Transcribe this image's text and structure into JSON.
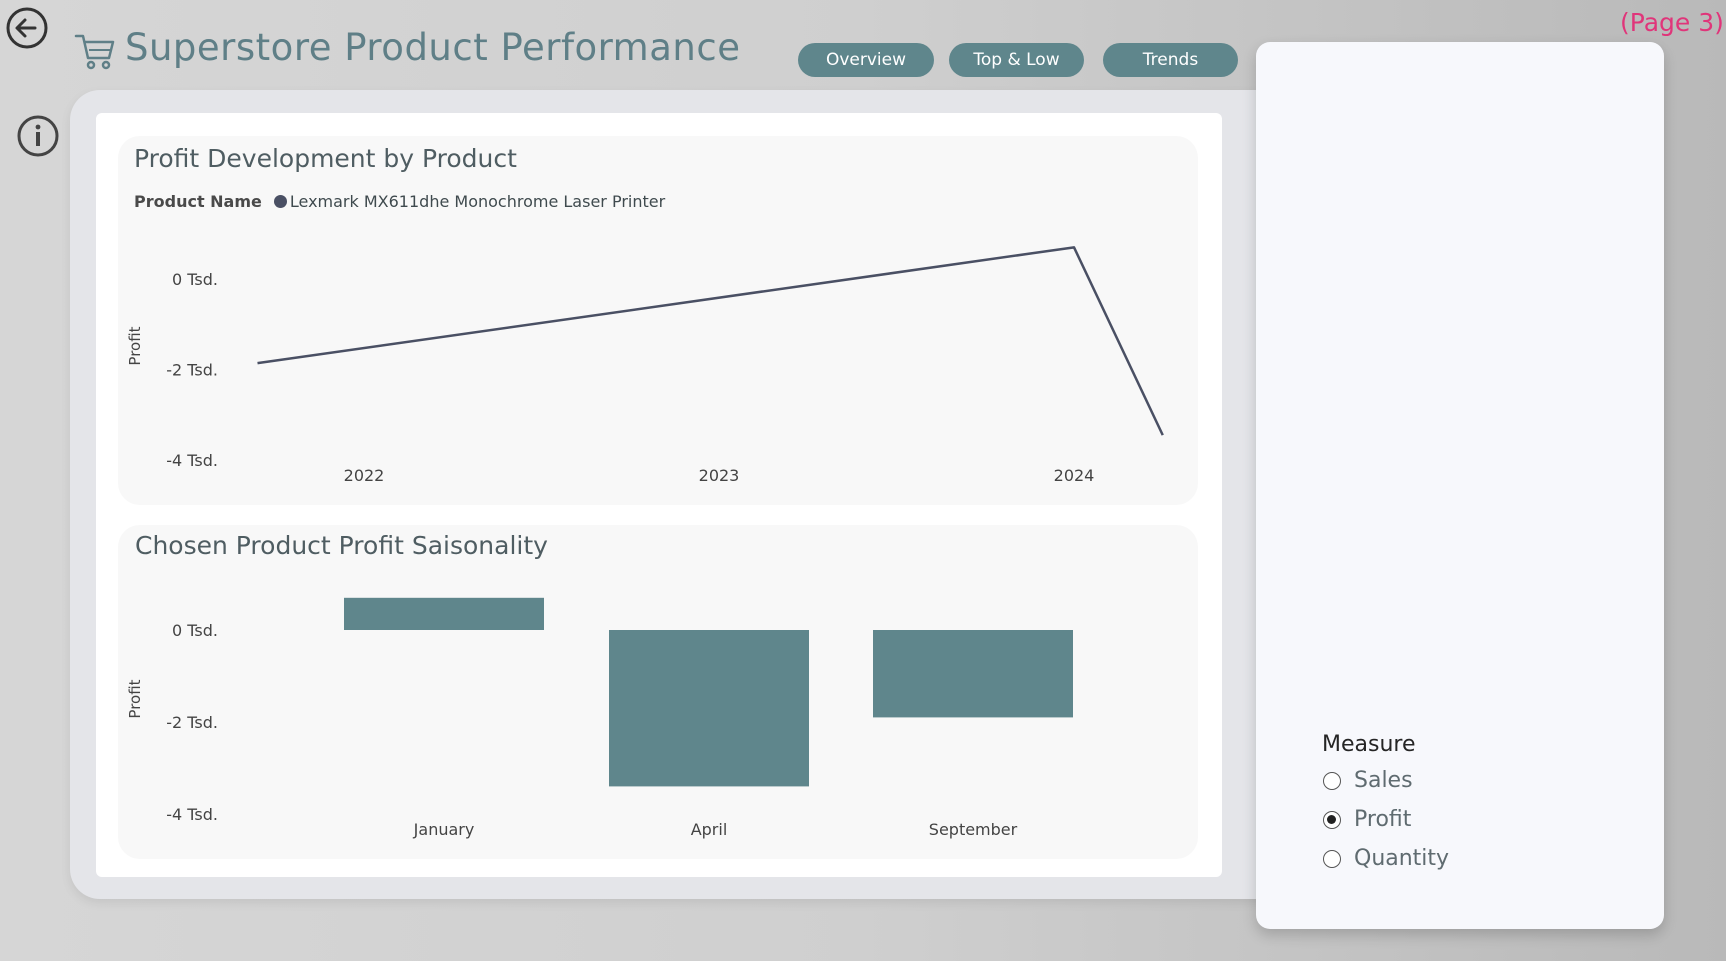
{
  "header": {
    "title": "Superstore Product Performance",
    "page_tag": "(Page 3)",
    "nav": [
      {
        "label": "Overview"
      },
      {
        "label": "Top & Low"
      },
      {
        "label": "Trends"
      }
    ]
  },
  "icons": {
    "back": "arrow-left-circle-icon",
    "info": "info-circle-icon",
    "cart": "shopping-cart-icon"
  },
  "colors": {
    "accent": "#5f868c",
    "line": "#4a5064",
    "page_tag": "#e0357a"
  },
  "line_panel": {
    "title": "Profit Development by Product",
    "legend_label": "Product Name",
    "legend_item": "Lexmark MX611dhe Monochrome Laser Printer"
  },
  "bar_panel": {
    "title": "Chosen Product Profit Saisonality"
  },
  "chart_data": [
    {
      "type": "line",
      "title": "Profit Development by Product",
      "ylabel": "Profit",
      "x_ticks": [
        "2022",
        "2023",
        "2024"
      ],
      "y_ticks": [
        "0 Tsd.",
        "-2 Tsd.",
        "-4 Tsd."
      ],
      "y_tick_values": [
        0,
        -2000,
        -4000
      ],
      "ylim": [
        -4000,
        1000
      ],
      "series": [
        {
          "name": "Lexmark MX611dhe Monochrome Laser Printer",
          "x": [
            2021.7,
            2024.0,
            2024.25
          ],
          "y": [
            -1860,
            700,
            -3450
          ]
        }
      ]
    },
    {
      "type": "bar",
      "title": "Chosen Product Profit Saisonality",
      "ylabel": "Profit",
      "categories": [
        "January",
        "April",
        "September"
      ],
      "values": [
        700,
        -3400,
        -1900
      ],
      "y_ticks": [
        "0 Tsd.",
        "-2 Tsd.",
        "-4 Tsd."
      ],
      "y_tick_values": [
        0,
        -2000,
        -4000
      ],
      "ylim": [
        -4000,
        1000
      ]
    }
  ],
  "measure": {
    "title": "Measure",
    "options": [
      {
        "label": "Sales",
        "checked": false
      },
      {
        "label": "Profit",
        "checked": true
      },
      {
        "label": "Quantity",
        "checked": false
      }
    ]
  }
}
